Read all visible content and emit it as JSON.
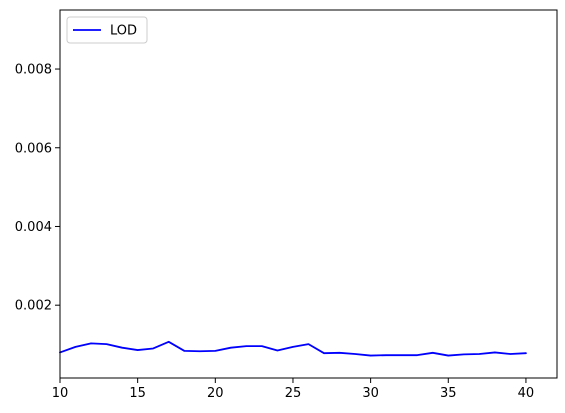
{
  "chart_data": {
    "type": "line",
    "title": "",
    "xlabel": "",
    "ylabel": "",
    "xlim": [
      10,
      42
    ],
    "ylim": [
      0.00015,
      0.0095
    ],
    "x_ticks": [
      10,
      15,
      20,
      25,
      30,
      35,
      40
    ],
    "x_tick_labels": [
      "10",
      "15",
      "20",
      "25",
      "30",
      "35",
      "40"
    ],
    "y_ticks": [
      0.002,
      0.004,
      0.006,
      0.008
    ],
    "y_tick_labels": [
      "0.002",
      "0.004",
      "0.006",
      "0.008"
    ],
    "grid": false,
    "legend": {
      "position": "top-left",
      "entries": [
        "LOD"
      ]
    },
    "series": [
      {
        "name": "LOD",
        "color": "#0000ff",
        "x": [
          10,
          11,
          12,
          13,
          14,
          15,
          16,
          17,
          18,
          19,
          20,
          21,
          22,
          23,
          24,
          25,
          26,
          27,
          28,
          29,
          30,
          31,
          32,
          33,
          34,
          35,
          36,
          37,
          38,
          39,
          40
        ],
        "y": [
          0.0008,
          0.00094,
          0.00103,
          0.00101,
          0.00092,
          0.00086,
          0.0009,
          0.00107,
          0.00084,
          0.00083,
          0.00084,
          0.00092,
          0.00096,
          0.00096,
          0.00085,
          0.00094,
          0.00101,
          0.00078,
          0.00079,
          0.00076,
          0.00072,
          0.00073,
          0.00073,
          0.00073,
          0.00079,
          0.00072,
          0.00075,
          0.00076,
          0.0008,
          0.00076,
          0.00078
        ]
      }
    ]
  }
}
